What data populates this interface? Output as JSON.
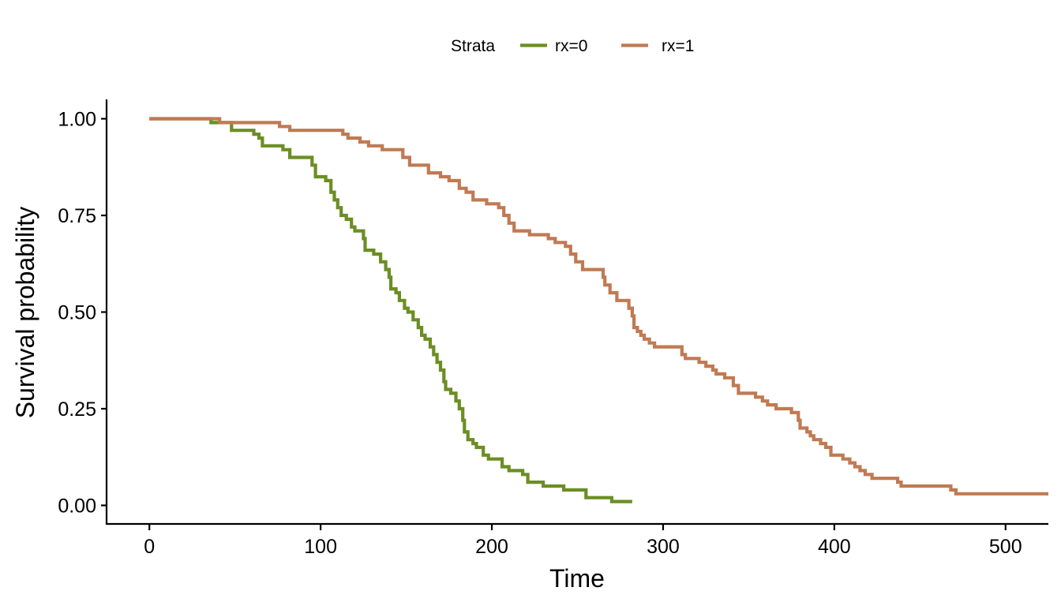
{
  "chart_data": {
    "type": "line",
    "step": true,
    "title": "",
    "xlabel": "Time",
    "ylabel": "Survival probability",
    "xlim": [
      -25,
      525
    ],
    "ylim": [
      -0.05,
      1.05
    ],
    "x_ticks": [
      0,
      100,
      200,
      300,
      400,
      500
    ],
    "x_tick_labels": [
      "0",
      "100",
      "200",
      "300",
      "400",
      "500"
    ],
    "y_ticks": [
      0,
      0.25,
      0.5,
      0.75,
      1.0
    ],
    "y_tick_labels": [
      "0.00",
      "0.25",
      "0.50",
      "0.75",
      "1.00"
    ],
    "grid": false,
    "legend": {
      "title": "Strata",
      "position": "top",
      "entries": [
        "rx=0",
        "rx=1"
      ]
    },
    "series": [
      {
        "name": "rx=0",
        "color": "#6B8E23",
        "points": [
          [
            0,
            1.0
          ],
          [
            36,
            0.99
          ],
          [
            40,
            0.99
          ],
          [
            48,
            0.97
          ],
          [
            61,
            0.96
          ],
          [
            64,
            0.95
          ],
          [
            66,
            0.93
          ],
          [
            78,
            0.92
          ],
          [
            82,
            0.9
          ],
          [
            95,
            0.88
          ],
          [
            97,
            0.85
          ],
          [
            103,
            0.84
          ],
          [
            106,
            0.81
          ],
          [
            108,
            0.79
          ],
          [
            110,
            0.77
          ],
          [
            112,
            0.75
          ],
          [
            115,
            0.74
          ],
          [
            118,
            0.72
          ],
          [
            120,
            0.71
          ],
          [
            125,
            0.69
          ],
          [
            126,
            0.66
          ],
          [
            131,
            0.65
          ],
          [
            135,
            0.63
          ],
          [
            138,
            0.61
          ],
          [
            140,
            0.59
          ],
          [
            141,
            0.56
          ],
          [
            144,
            0.55
          ],
          [
            146,
            0.53
          ],
          [
            149,
            0.51
          ],
          [
            151,
            0.5
          ],
          [
            154,
            0.48
          ],
          [
            157,
            0.46
          ],
          [
            159,
            0.44
          ],
          [
            161,
            0.43
          ],
          [
            164,
            0.41
          ],
          [
            166,
            0.39
          ],
          [
            168,
            0.37
          ],
          [
            170,
            0.35
          ],
          [
            172,
            0.32
          ],
          [
            173,
            0.3
          ],
          [
            176,
            0.29
          ],
          [
            179,
            0.27
          ],
          [
            181,
            0.25
          ],
          [
            183,
            0.22
          ],
          [
            184,
            0.19
          ],
          [
            186,
            0.17
          ],
          [
            189,
            0.16
          ],
          [
            191,
            0.15
          ],
          [
            195,
            0.13
          ],
          [
            198,
            0.12
          ],
          [
            206,
            0.1
          ],
          [
            210,
            0.09
          ],
          [
            218,
            0.08
          ],
          [
            221,
            0.06
          ],
          [
            230,
            0.05
          ],
          [
            242,
            0.04
          ],
          [
            255,
            0.02
          ],
          [
            270,
            0.01
          ],
          [
            282,
            0.01
          ]
        ]
      },
      {
        "name": "rx=1",
        "color": "#C07A53",
        "points": [
          [
            0,
            1.0
          ],
          [
            41,
            0.99
          ],
          [
            76,
            0.98
          ],
          [
            82,
            0.97
          ],
          [
            113,
            0.96
          ],
          [
            116,
            0.95
          ],
          [
            123,
            0.94
          ],
          [
            128,
            0.93
          ],
          [
            136,
            0.92
          ],
          [
            148,
            0.9
          ],
          [
            152,
            0.88
          ],
          [
            163,
            0.86
          ],
          [
            170,
            0.85
          ],
          [
            175,
            0.84
          ],
          [
            181,
            0.82
          ],
          [
            185,
            0.81
          ],
          [
            189,
            0.79
          ],
          [
            197,
            0.78
          ],
          [
            204,
            0.77
          ],
          [
            207,
            0.75
          ],
          [
            210,
            0.73
          ],
          [
            213,
            0.71
          ],
          [
            222,
            0.7
          ],
          [
            233,
            0.69
          ],
          [
            237,
            0.68
          ],
          [
            243,
            0.67
          ],
          [
            246,
            0.65
          ],
          [
            249,
            0.63
          ],
          [
            253,
            0.61
          ],
          [
            265,
            0.59
          ],
          [
            266,
            0.57
          ],
          [
            269,
            0.55
          ],
          [
            273,
            0.53
          ],
          [
            280,
            0.51
          ],
          [
            282,
            0.49
          ],
          [
            283,
            0.46
          ],
          [
            285,
            0.45
          ],
          [
            287,
            0.44
          ],
          [
            289,
            0.43
          ],
          [
            292,
            0.42
          ],
          [
            295,
            0.41
          ],
          [
            311,
            0.39
          ],
          [
            313,
            0.38
          ],
          [
            321,
            0.37
          ],
          [
            325,
            0.36
          ],
          [
            329,
            0.35
          ],
          [
            331,
            0.34
          ],
          [
            336,
            0.33
          ],
          [
            341,
            0.31
          ],
          [
            344,
            0.29
          ],
          [
            354,
            0.28
          ],
          [
            358,
            0.27
          ],
          [
            361,
            0.26
          ],
          [
            366,
            0.25
          ],
          [
            375,
            0.24
          ],
          [
            379,
            0.22
          ],
          [
            380,
            0.2
          ],
          [
            384,
            0.19
          ],
          [
            386,
            0.18
          ],
          [
            388,
            0.17
          ],
          [
            392,
            0.16
          ],
          [
            395,
            0.15
          ],
          [
            398,
            0.13
          ],
          [
            405,
            0.12
          ],
          [
            409,
            0.11
          ],
          [
            412,
            0.1
          ],
          [
            415,
            0.09
          ],
          [
            418,
            0.08
          ],
          [
            422,
            0.07
          ],
          [
            437,
            0.06
          ],
          [
            439,
            0.05
          ],
          [
            468,
            0.04
          ],
          [
            471,
            0.03
          ],
          [
            525,
            0.03
          ],
          [
            529,
            0.01
          ],
          [
            555,
            0.01
          ]
        ]
      }
    ]
  }
}
